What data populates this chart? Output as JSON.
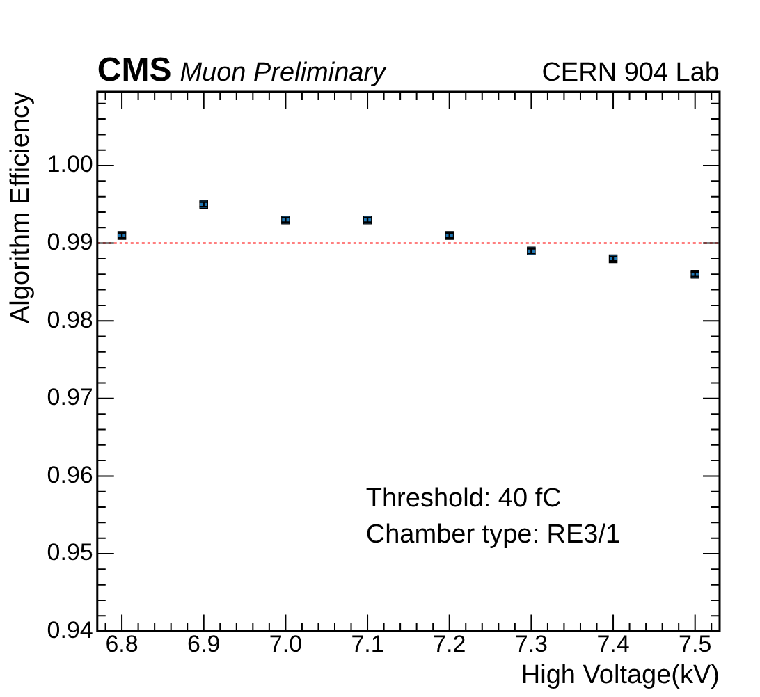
{
  "chart_data": {
    "type": "scatter",
    "title": "CMS",
    "subtitle": "Muon Preliminary",
    "xlabel": "High Voltage(kV)",
    "ylabel": "Algorithm Efficiency",
    "x": [
      6.8,
      6.9,
      7.0,
      7.1,
      7.2,
      7.3,
      7.4,
      7.5
    ],
    "series": [
      {
        "color": "#1f77b4",
        "values": [
          0.991,
          0.995,
          0.993,
          0.993,
          0.991,
          0.989,
          0.988,
          0.986
        ],
        "errors": [
          0.0003,
          0.0003,
          0.0003,
          0.0003,
          0.0003,
          0.0003,
          0.0003,
          0.0003
        ]
      }
    ],
    "xlim": [
      6.77,
      7.53
    ],
    "xticks": [
      {
        "value": 6.78,
        "label": null
      },
      6.8,
      {
        "value": 6.82,
        "label": null
      },
      {
        "value": 6.84,
        "label": null
      },
      {
        "value": 6.86,
        "label": null
      },
      {
        "value": 6.88,
        "label": null
      },
      6.9,
      {
        "value": 6.92,
        "label": null
      },
      {
        "value": 6.94,
        "label": null
      },
      {
        "value": 6.96,
        "label": null
      },
      {
        "value": 6.98,
        "label": null
      },
      {
        "value": 7.0,
        "label": "7.0"
      },
      {
        "value": 7.02,
        "label": null
      },
      {
        "value": 7.04,
        "label": null
      },
      {
        "value": 7.06,
        "label": null
      },
      {
        "value": 7.08,
        "label": null
      },
      7.1,
      {
        "value": 7.12,
        "label": null
      },
      {
        "value": 7.14,
        "label": null
      },
      {
        "value": 7.16,
        "label": null
      },
      {
        "value": 7.18,
        "label": null
      },
      7.2,
      {
        "value": 7.22,
        "label": null
      },
      {
        "value": 7.24,
        "label": null
      },
      {
        "value": 7.26,
        "label": null
      },
      {
        "value": 7.28,
        "label": null
      },
      7.3,
      {
        "value": 7.32,
        "label": null
      },
      {
        "value": 7.34,
        "label": null
      },
      {
        "value": 7.36,
        "label": null
      },
      {
        "value": 7.38,
        "label": null
      },
      7.4,
      {
        "value": 7.42,
        "label": null
      },
      {
        "value": 7.44,
        "label": null
      },
      {
        "value": 7.46,
        "label": null
      },
      {
        "value": 7.48,
        "label": null
      },
      7.5,
      {
        "value": 7.52,
        "label": null
      }
    ],
    "ylim": [
      0.94,
      1.0095
    ],
    "yticks": [
      {
        "value": 0.94,
        "label": "0.94"
      },
      {
        "value": 0.942,
        "label": null
      },
      {
        "value": 0.944,
        "label": null
      },
      {
        "value": 0.946,
        "label": null
      },
      {
        "value": 0.948,
        "label": null
      },
      0.95,
      {
        "value": 0.952,
        "label": null
      },
      {
        "value": 0.954,
        "label": null
      },
      {
        "value": 0.956,
        "label": null
      },
      {
        "value": 0.958,
        "label": null
      },
      0.96,
      {
        "value": 0.962,
        "label": null
      },
      {
        "value": 0.964,
        "label": null
      },
      {
        "value": 0.966,
        "label": null
      },
      {
        "value": 0.968,
        "label": null
      },
      0.97,
      {
        "value": 0.972,
        "label": null
      },
      {
        "value": 0.974,
        "label": null
      },
      {
        "value": 0.976,
        "label": null
      },
      {
        "value": 0.978,
        "label": null
      },
      0.98,
      {
        "value": 0.982,
        "label": null
      },
      {
        "value": 0.984,
        "label": null
      },
      {
        "value": 0.986,
        "label": null
      },
      {
        "value": 0.988,
        "label": null
      },
      0.99,
      {
        "value": 0.992,
        "label": null
      },
      {
        "value": 0.994,
        "label": null
      },
      {
        "value": 0.996,
        "label": null
      },
      {
        "value": 0.998,
        "label": null
      },
      {
        "value": 1.0,
        "label": "1.00"
      },
      {
        "value": 1.002,
        "label": null
      },
      {
        "value": 1.004,
        "label": null
      },
      {
        "value": 1.006,
        "label": null
      },
      {
        "value": 1.008,
        "label": null
      }
    ],
    "ref_lines": [
      {
        "axis": "y",
        "value": 0.99,
        "color": "#ff0000",
        "line_style": "dotted"
      }
    ],
    "annotations": [
      "CERN 904 Lab",
      "Threshold: 40 fC",
      "Chamber type: RE3/1"
    ],
    "marker": "square",
    "grid": false,
    "legend": false
  }
}
